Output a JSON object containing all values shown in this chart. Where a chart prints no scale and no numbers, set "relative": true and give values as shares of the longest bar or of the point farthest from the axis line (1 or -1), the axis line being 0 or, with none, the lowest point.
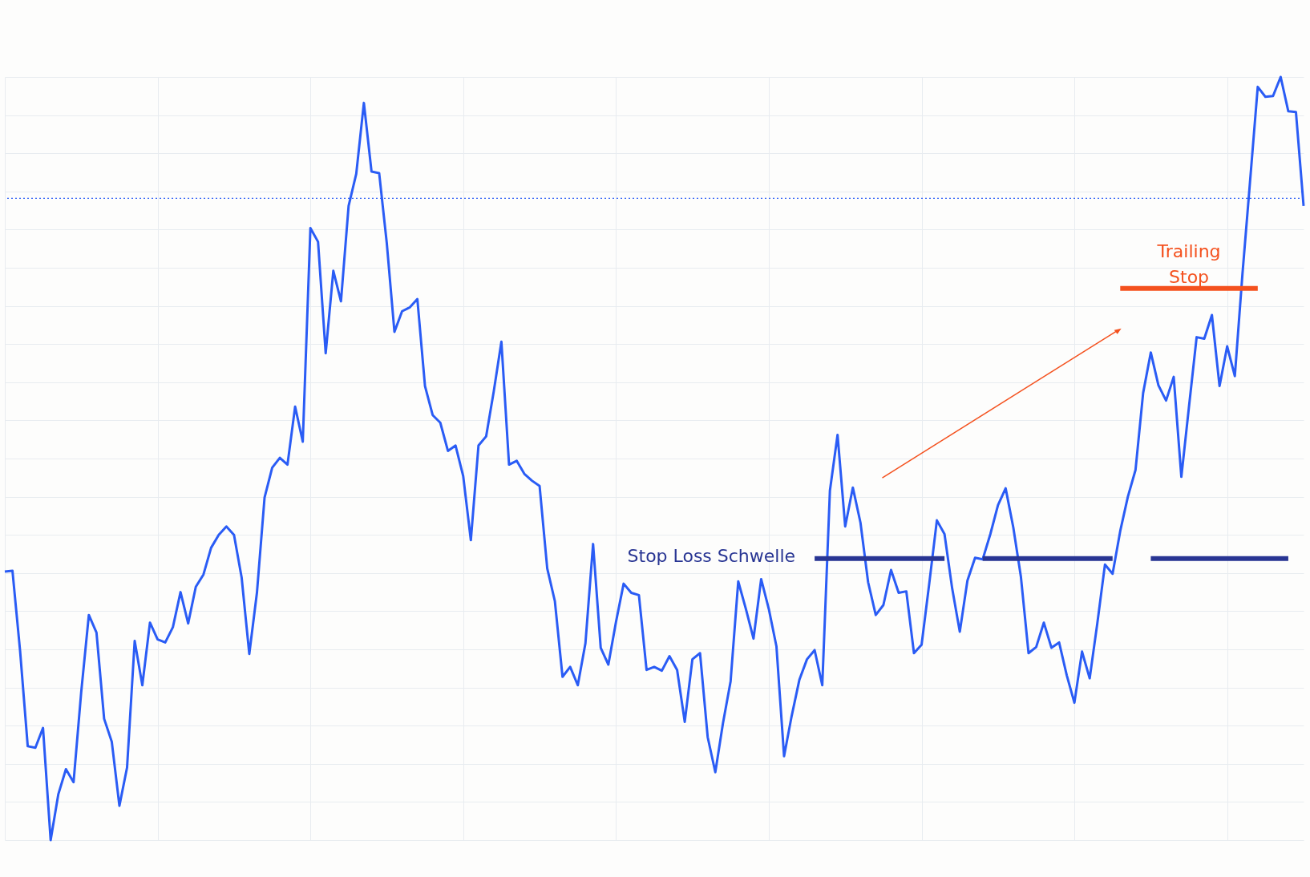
{
  "chart_data": {
    "type": "line",
    "relative": true,
    "grid": true,
    "categories": [
      null,
      null,
      null,
      null,
      null,
      null,
      null,
      null,
      null,
      null,
      null,
      null,
      null,
      null,
      null,
      null,
      null,
      null,
      null,
      null,
      null,
      null,
      null,
      null,
      null,
      null,
      null,
      null,
      null,
      null,
      null,
      null,
      null,
      null,
      null,
      null,
      null,
      null,
      null,
      null,
      null,
      null,
      null,
      null,
      null,
      null,
      null,
      null,
      null,
      null,
      null,
      null,
      null,
      null,
      null,
      null,
      null,
      null,
      null,
      null,
      null,
      null,
      null,
      null,
      null,
      null,
      null,
      null,
      null,
      null,
      null,
      null,
      null,
      null,
      null,
      null,
      null,
      null,
      null,
      null,
      null,
      null,
      null,
      null,
      null,
      null,
      null,
      null,
      null,
      null,
      null,
      null,
      null,
      null,
      null,
      null,
      null,
      null,
      null,
      null,
      null,
      null,
      null,
      null,
      null,
      null,
      null,
      null,
      null,
      null,
      null,
      null,
      null,
      null,
      null,
      null,
      null,
      null,
      null,
      null,
      null,
      null,
      null,
      null,
      null,
      null,
      null,
      null,
      null,
      null,
      null,
      null,
      null,
      null,
      null,
      null,
      null,
      null,
      null,
      null,
      null,
      null,
      null,
      null,
      null,
      null,
      null,
      null,
      null,
      null,
      null,
      null,
      null,
      null,
      null,
      null,
      null,
      null,
      null,
      null,
      null,
      null,
      null,
      null,
      null,
      null,
      null,
      null,
      null,
      null,
      null
    ],
    "series": [
      {
        "color": "#2a5cf5",
        "values": [
          0.352,
          0.353,
          0.248,
          0.123,
          0.121,
          0.147,
          0,
          0.06,
          0.093,
          0.076,
          0.194,
          0.295,
          0.272,
          0.159,
          0.129,
          0.045,
          0.095,
          0.261,
          0.203,
          0.285,
          0.263,
          0.259,
          0.279,
          0.325,
          0.284,
          0.332,
          0.348,
          0.383,
          0.4,
          0.411,
          0.4,
          0.344,
          0.244,
          0.324,
          0.449,
          0.488,
          0.501,
          0.492,
          0.568,
          0.522,
          0.802,
          0.784,
          0.638,
          0.746,
          0.706,
          0.831,
          0.873,
          0.966,
          0.876,
          0.874,
          0.782,
          0.666,
          0.693,
          0.698,
          0.709,
          0.595,
          0.557,
          0.547,
          0.51,
          0.517,
          0.477,
          0.393,
          0.517,
          0.529,
          0.588,
          0.653,
          0.492,
          0.497,
          0.48,
          0.471,
          0.464,
          0.356,
          0.313,
          0.214,
          0.227,
          0.203,
          0.258,
          0.388,
          0.252,
          0.23,
          0.286,
          0.336,
          0.324,
          0.321,
          0.223,
          0.227,
          0.222,
          0.241,
          0.223,
          0.155,
          0.237,
          0.245,
          0.135,
          0.089,
          0.153,
          0.208,
          0.339,
          0.303,
          0.264,
          0.342,
          0.303,
          0.254,
          0.11,
          0.163,
          0.21,
          0.237,
          0.249,
          0.203,
          0.458,
          0.531,
          0.411,
          0.462,
          0.416,
          0.338,
          0.295,
          0.308,
          0.354,
          0.324,
          0.326,
          0.245,
          0.256,
          0.336,
          0.419,
          0.401,
          0.33,
          0.273,
          0.34,
          0.37,
          0.368,
          0.401,
          0.439,
          0.461,
          0.41,
          0.345,
          0.245,
          0.253,
          0.285,
          0.252,
          0.259,
          0.216,
          0.18,
          0.247,
          0.212,
          0.284,
          0.361,
          0.349,
          0.405,
          0.45,
          0.485,
          0.586,
          0.639,
          0.596,
          0.576,
          0.607,
          0.476,
          0.568,
          0.659,
          0.657,
          0.688,
          0.595,
          0.647,
          0.608,
          0.742,
          0.864,
          0.987,
          0.974,
          0.975,
          1,
          0.955,
          0.954,
          0.831
        ]
      },
      {
        "name": "Stop Loss Schwelle",
        "color": "#283593",
        "values": [
          null,
          null,
          null,
          null,
          null,
          null,
          null,
          null,
          null,
          null,
          null,
          null,
          null,
          null,
          null,
          null,
          null,
          null,
          null,
          null,
          null,
          null,
          null,
          null,
          null,
          null,
          null,
          null,
          null,
          null,
          null,
          null,
          null,
          null,
          null,
          null,
          null,
          null,
          null,
          null,
          null,
          null,
          null,
          null,
          null,
          null,
          null,
          null,
          null,
          null,
          null,
          null,
          null,
          null,
          null,
          null,
          null,
          null,
          null,
          null,
          null,
          null,
          null,
          null,
          null,
          null,
          null,
          null,
          null,
          null,
          null,
          null,
          null,
          null,
          null,
          null,
          null,
          null,
          null,
          null,
          null,
          null,
          null,
          null,
          null,
          null,
          null,
          null,
          null,
          null,
          null,
          null,
          null,
          null,
          null,
          null,
          null,
          null,
          null,
          null,
          null,
          null,
          null,
          null,
          null,
          null,
          0.369,
          0.369,
          0.369,
          0.369,
          0.369,
          0.369,
          0.369,
          0.369,
          0.369,
          0.369,
          0.369,
          0.369,
          0.369,
          0.369,
          0.369,
          0.369,
          0.369,
          0.369,
          null,
          null,
          null,
          null,
          0.369,
          0.369,
          0.369,
          0.369,
          0.369,
          0.369,
          0.369,
          0.369,
          0.369,
          0.369,
          0.369,
          0.369,
          0.369,
          0.369,
          0.369,
          0.369,
          0.369,
          0.369,
          null,
          null,
          null,
          null,
          0.369,
          0.369,
          0.369,
          0.369,
          0.369,
          0.369,
          0.369,
          0.369,
          0.369,
          0.369,
          0.369,
          0.369,
          0.369,
          0.369,
          0.369,
          0.369,
          0.369,
          0.369,
          0.369,
          null,
          null
        ]
      },
      {
        "name": "Trailing Stop",
        "color": "#f4511e",
        "values": [
          null,
          null,
          null,
          null,
          null,
          null,
          null,
          null,
          null,
          null,
          null,
          null,
          null,
          null,
          null,
          null,
          null,
          null,
          null,
          null,
          null,
          null,
          null,
          null,
          null,
          null,
          null,
          null,
          null,
          null,
          null,
          null,
          null,
          null,
          null,
          null,
          null,
          null,
          null,
          null,
          null,
          null,
          null,
          null,
          null,
          null,
          null,
          null,
          null,
          null,
          null,
          null,
          null,
          null,
          null,
          null,
          null,
          null,
          null,
          null,
          null,
          null,
          null,
          null,
          null,
          null,
          null,
          null,
          null,
          null,
          null,
          null,
          null,
          null,
          null,
          null,
          null,
          null,
          null,
          null,
          null,
          null,
          null,
          null,
          null,
          null,
          null,
          null,
          null,
          null,
          null,
          null,
          null,
          null,
          null,
          null,
          null,
          null,
          null,
          null,
          null,
          null,
          null,
          null,
          null,
          null,
          null,
          null,
          null,
          null,
          null,
          null,
          null,
          null,
          null,
          null,
          null,
          null,
          null,
          null,
          null,
          null,
          null,
          null,
          null,
          null,
          null,
          null,
          null,
          null,
          null,
          null,
          null,
          null,
          null,
          null,
          null,
          null,
          null,
          null,
          null,
          null,
          null,
          null,
          null,
          null,
          0.723,
          0.723,
          0.723,
          0.723,
          0.723,
          0.723,
          0.723,
          0.723,
          0.723,
          0.723,
          0.723,
          0.723,
          0.723,
          0.723,
          0.723,
          0.723,
          0.723,
          0.723,
          0.723,
          null,
          null,
          null,
          null,
          null,
          null
        ]
      }
    ],
    "ref_lines": [
      {
        "axis": "y",
        "value": 0.841,
        "color": "#2a5cf5",
        "line_style": "dotted"
      }
    ]
  }
}
